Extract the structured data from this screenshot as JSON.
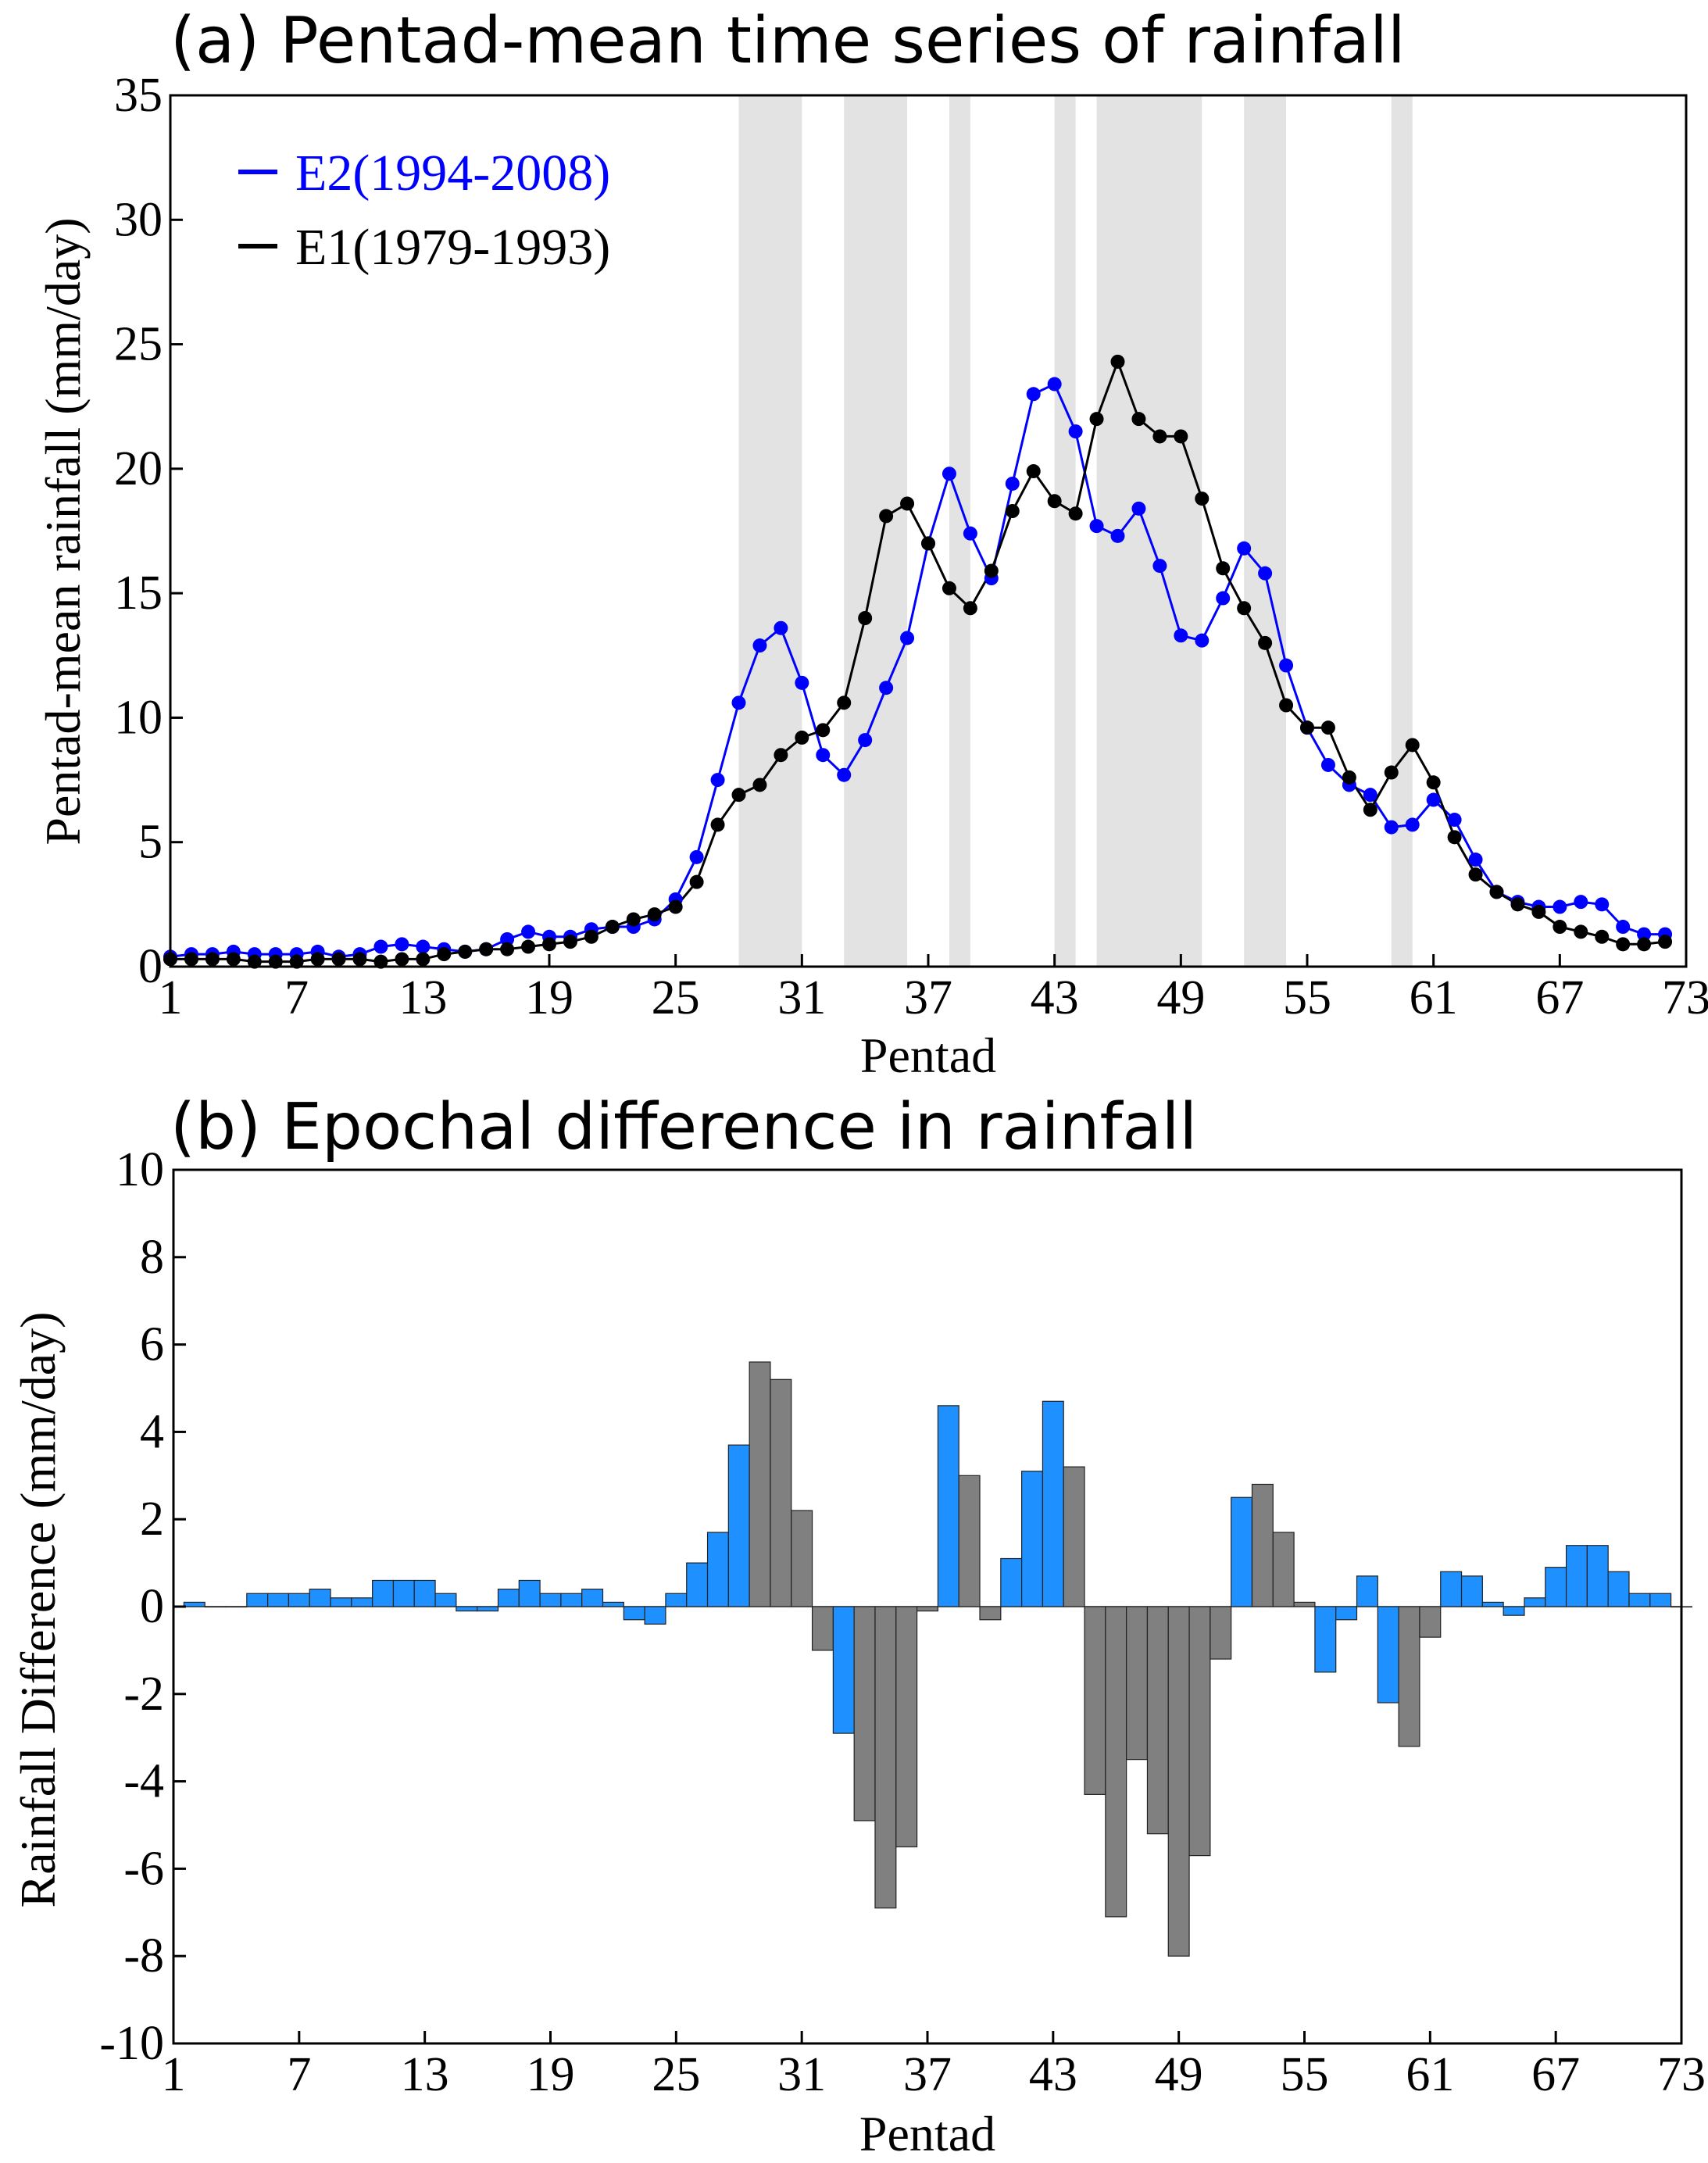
{
  "chart_data": [
    {
      "type": "line",
      "title": "(a) Pentad-mean time series of rainfall",
      "xlabel": "Pentad",
      "ylabel": "Pentad-mean rainfall (mm/day)",
      "xlim": [
        1,
        73
      ],
      "ylim": [
        0,
        35
      ],
      "xticks": [
        1,
        7,
        13,
        19,
        25,
        31,
        37,
        43,
        49,
        55,
        61,
        67,
        73
      ],
      "yticks": [
        0,
        5,
        10,
        15,
        20,
        25,
        30,
        35
      ],
      "xtick_labels": [
        "1",
        "7",
        "13",
        "19",
        "25",
        "31",
        "37",
        "43",
        "49",
        "55",
        "61",
        "67",
        "73"
      ],
      "ytick_labels": [
        "0",
        "5",
        "10",
        "15",
        "20",
        "25",
        "30",
        "35"
      ],
      "legend_position": "top-left",
      "shaded_pentad_ranges": [
        [
          28,
          31
        ],
        [
          33,
          36
        ],
        [
          38,
          39
        ],
        [
          43,
          44
        ],
        [
          45,
          50
        ],
        [
          52,
          54
        ],
        [
          59,
          60
        ]
      ],
      "x": [
        1,
        2,
        3,
        4,
        5,
        6,
        7,
        8,
        9,
        10,
        11,
        12,
        13,
        14,
        15,
        16,
        17,
        18,
        19,
        20,
        21,
        22,
        23,
        24,
        25,
        26,
        27,
        28,
        29,
        30,
        31,
        32,
        33,
        34,
        35,
        36,
        37,
        38,
        39,
        40,
        41,
        42,
        43,
        44,
        45,
        46,
        47,
        48,
        49,
        50,
        51,
        52,
        53,
        54,
        55,
        56,
        57,
        58,
        59,
        60,
        61,
        62,
        63,
        64,
        65,
        66,
        67,
        68,
        69,
        70,
        71,
        72
      ],
      "series": [
        {
          "name": "E2(1994-2008)",
          "color": "#0000ff",
          "values": [
            0.4,
            0.5,
            0.5,
            0.6,
            0.5,
            0.5,
            0.5,
            0.6,
            0.4,
            0.5,
            0.8,
            0.9,
            0.8,
            0.7,
            0.6,
            0.7,
            1.1,
            1.4,
            1.2,
            1.2,
            1.5,
            1.6,
            1.6,
            1.9,
            2.7,
            4.4,
            7.5,
            10.6,
            12.9,
            13.6,
            11.4,
            8.5,
            7.7,
            9.1,
            11.2,
            13.2,
            17.0,
            19.8,
            17.4,
            15.6,
            19.4,
            23.0,
            23.4,
            21.5,
            17.7,
            17.3,
            18.4,
            16.1,
            13.3,
            13.1,
            14.8,
            16.8,
            15.8,
            12.1,
            9.6,
            8.1,
            7.3,
            6.9,
            5.6,
            5.7,
            6.7,
            5.9,
            4.3,
            3.0,
            2.6,
            2.4,
            2.4,
            2.6,
            2.5,
            1.6,
            1.3,
            1.3
          ]
        },
        {
          "name": "E1(1979-1993)",
          "color": "#000000",
          "values": [
            0.3,
            0.3,
            0.3,
            0.3,
            0.2,
            0.2,
            0.2,
            0.3,
            0.3,
            0.3,
            0.2,
            0.3,
            0.3,
            0.5,
            0.6,
            0.7,
            0.7,
            0.8,
            0.9,
            1.0,
            1.2,
            1.6,
            1.9,
            2.1,
            2.4,
            3.4,
            5.7,
            6.9,
            7.3,
            8.5,
            9.2,
            9.5,
            10.6,
            14.0,
            18.1,
            18.6,
            17.0,
            15.2,
            14.4,
            15.9,
            18.3,
            19.9,
            18.7,
            18.2,
            22.0,
            24.3,
            22.0,
            21.3,
            21.3,
            18.8,
            16.0,
            14.4,
            13.0,
            10.5,
            9.6,
            9.6,
            7.6,
            6.3,
            7.8,
            8.9,
            7.4,
            5.2,
            3.7,
            3.0,
            2.5,
            2.2,
            1.6,
            1.4,
            1.2,
            0.9,
            0.9,
            1.0
          ]
        }
      ]
    },
    {
      "type": "bar",
      "title": "(b) Epochal difference in rainfall",
      "xlabel": "Pentad",
      "ylabel": "Rainfall Difference (mm/day)",
      "xlim": [
        1,
        73
      ],
      "ylim": [
        -10,
        10
      ],
      "xticks": [
        1,
        7,
        13,
        19,
        25,
        31,
        37,
        43,
        49,
        55,
        61,
        67,
        73
      ],
      "yticks": [
        -10,
        -8,
        -6,
        -4,
        -2,
        0,
        2,
        4,
        6,
        8,
        10
      ],
      "xtick_labels": [
        "1",
        "7",
        "13",
        "19",
        "25",
        "31",
        "37",
        "43",
        "49",
        "55",
        "61",
        "67",
        "73"
      ],
      "ytick_labels": [
        "-10",
        "-8",
        "-6",
        "-4",
        "-2",
        "0",
        "2",
        "4",
        "6",
        "8",
        "10"
      ],
      "highlight_color": "#808080",
      "base_color": "#1e90ff",
      "x": [
        1,
        2,
        3,
        4,
        5,
        6,
        7,
        8,
        9,
        10,
        11,
        12,
        13,
        14,
        15,
        16,
        17,
        18,
        19,
        20,
        21,
        22,
        23,
        24,
        25,
        26,
        27,
        28,
        29,
        30,
        31,
        32,
        33,
        34,
        35,
        36,
        37,
        38,
        39,
        40,
        41,
        42,
        43,
        44,
        45,
        46,
        47,
        48,
        49,
        50,
        51,
        52,
        53,
        54,
        55,
        56,
        57,
        58,
        59,
        60,
        61,
        62,
        63,
        64,
        65,
        66,
        67,
        68,
        69,
        70,
        71,
        72
      ],
      "values": [
        0.1,
        0.0,
        0.0,
        0.3,
        0.3,
        0.3,
        0.4,
        0.2,
        0.2,
        0.6,
        0.6,
        0.6,
        0.3,
        -0.1,
        -0.1,
        0.4,
        0.6,
        0.3,
        0.3,
        0.4,
        0.1,
        -0.3,
        -0.4,
        0.3,
        1.0,
        1.7,
        3.7,
        5.6,
        5.2,
        2.2,
        -1.0,
        -2.9,
        -4.9,
        -6.9,
        -5.5,
        -0.1,
        4.6,
        3.0,
        -0.3,
        1.1,
        3.1,
        4.7,
        3.2,
        -4.3,
        -7.1,
        -3.5,
        -5.2,
        -8.0,
        -5.7,
        -1.2,
        2.5,
        2.8,
        1.7,
        0.1,
        -1.5,
        -0.3,
        0.7,
        -2.2,
        -3.2,
        -0.7,
        0.8,
        0.7,
        0.1,
        -0.2,
        0.2,
        0.9,
        1.4,
        1.4,
        0.8,
        0.3,
        0.3,
        0.0
      ],
      "highlighted_pentads": [
        28,
        29,
        30,
        31,
        33,
        34,
        35,
        36,
        38,
        39,
        43,
        44,
        45,
        46,
        47,
        48,
        49,
        50,
        52,
        53,
        54,
        59,
        60
      ]
    }
  ]
}
